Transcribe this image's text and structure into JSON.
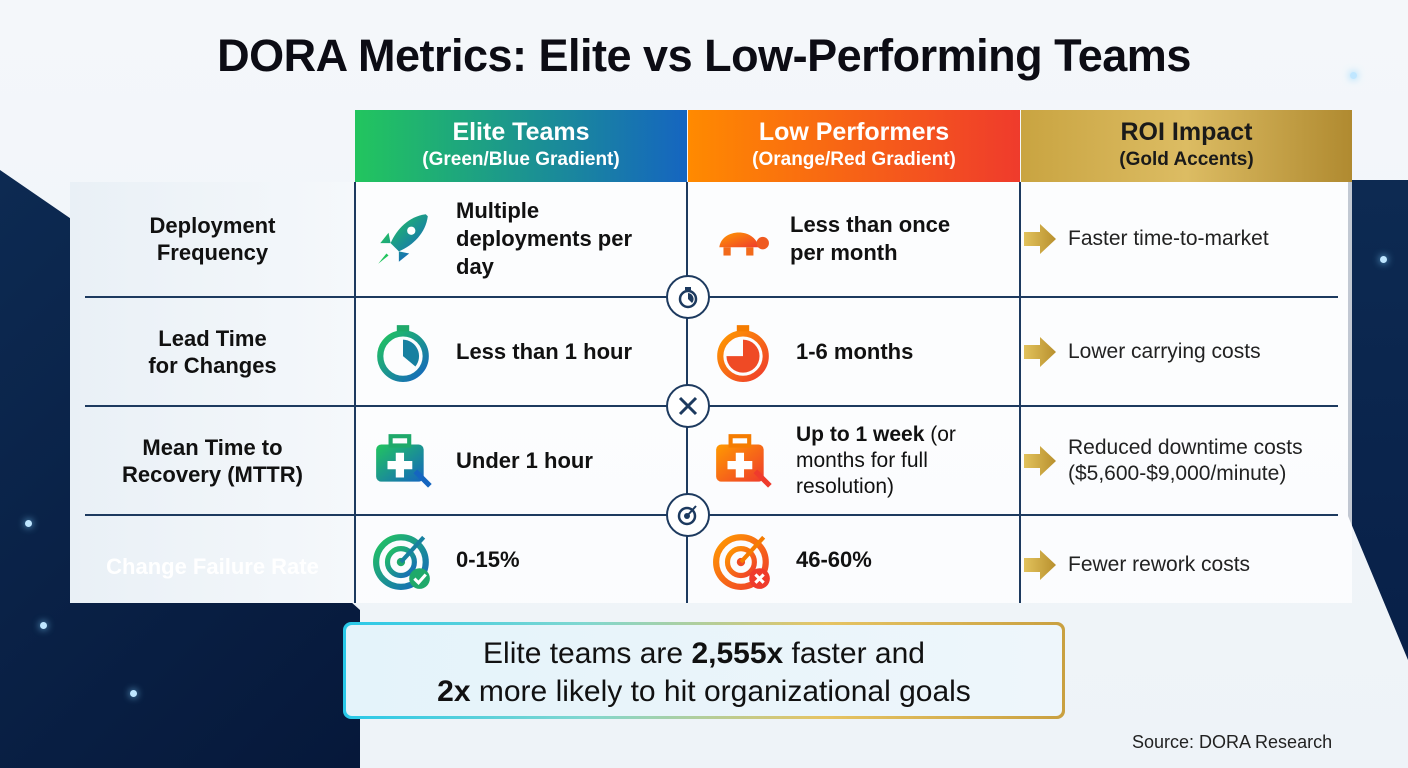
{
  "title": "DORA Metrics: Elite vs Low-Performing Teams",
  "columns": [
    {
      "title": "Elite Teams",
      "subtitle": "(Green/Blue Gradient)",
      "colors": [
        "#22c55e",
        "#1565c0"
      ]
    },
    {
      "title": "Low Performers",
      "subtitle": "(Orange/Red Gradient)",
      "colors": [
        "#ff8a00",
        "#ef3b2c"
      ]
    },
    {
      "title": "ROI Impact",
      "subtitle": "(Gold Accents)",
      "colors": [
        "#c9a441",
        "#a8802a"
      ]
    }
  ],
  "rows": [
    {
      "metric": "Deployment Frequency",
      "metric_lines": [
        "Deployment",
        "Frequency"
      ],
      "elite_icon": "rocket-icon",
      "elite": "Multiple deployments per day",
      "low_icon": "turtle-icon",
      "low": "Less than once per month",
      "roi": "Faster time-to-market"
    },
    {
      "metric_lines": [
        "Lead Time",
        "for Changes"
      ],
      "elite_icon": "stopwatch-icon",
      "elite": "Less than 1 hour",
      "low_icon": "stopwatch-icon",
      "low": "1-6 months",
      "roi": "Lower carrying costs"
    },
    {
      "metric_lines": [
        "Mean Time to",
        "Recovery (MTTR)"
      ],
      "elite_icon": "first-aid-kit-icon",
      "elite": "Under 1 hour",
      "low_icon": "first-aid-kit-icon",
      "low_bold": "Up to 1 week",
      "low_rest": " (or months for full resolution)",
      "roi_lines": [
        "Reduced downtime costs",
        "($5,600-$9,000/minute)"
      ]
    },
    {
      "metric_lines": [
        "Change Failure Rate"
      ],
      "elite_icon": "target-check-icon",
      "elite": "0-15%",
      "low_icon": "target-x-icon",
      "low": "46-60%",
      "roi": "Fewer rework costs"
    }
  ],
  "callout": {
    "p1": "Elite teams are ",
    "b1": "2,555x",
    "p2": " faster and",
    "b2": "2x",
    "p3": " more likely to hit organizational goals"
  },
  "source": "Source: DORA Research",
  "colors": {
    "navy": "#1d3a5f",
    "gold": "#d4af37"
  }
}
